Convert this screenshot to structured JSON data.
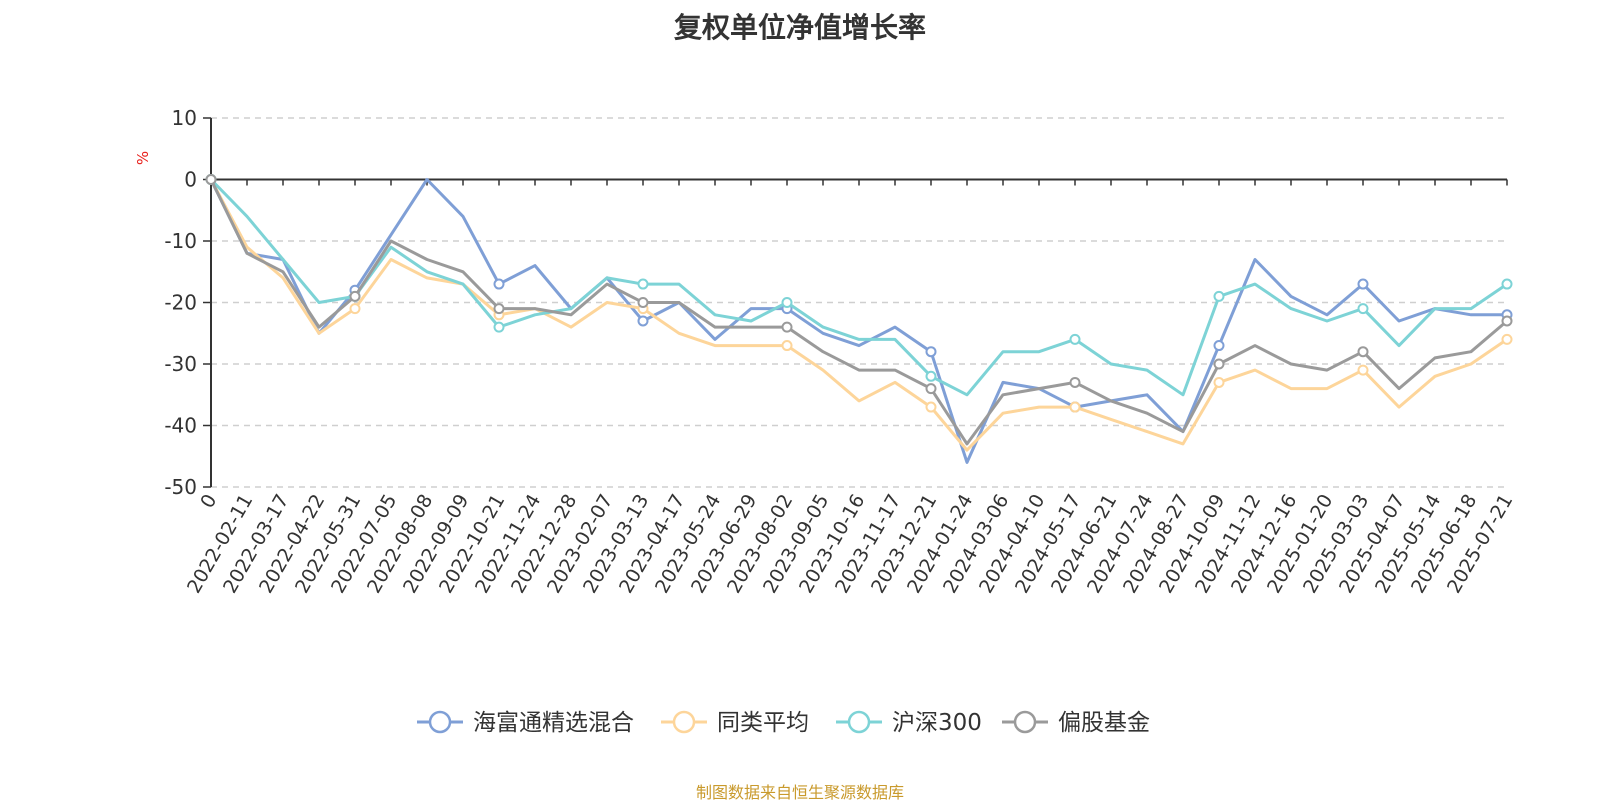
{
  "chart_data": {
    "type": "line",
    "title": "复权单位净值增长率",
    "ylabel": "%",
    "ylim": [
      -50,
      10
    ],
    "yticks": [
      10,
      0,
      -10,
      -20,
      -30,
      -40,
      -50
    ],
    "x_origin_label": "0",
    "x_tick_labels": [
      "2022-02-11",
      "2022-03-17",
      "2022-04-22",
      "2022-05-31",
      "2022-07-05",
      "2022-08-08",
      "2022-09-09",
      "2022-10-21",
      "2022-11-24",
      "2022-12-28",
      "2023-02-07",
      "2023-03-13",
      "2023-04-17",
      "2023-05-24",
      "2023-06-29",
      "2023-08-02",
      "2023-09-05",
      "2023-10-16",
      "2023-11-17",
      "2023-12-21",
      "2024-01-24",
      "2024-03-06",
      "2024-04-10",
      "2024-05-17",
      "2024-06-21",
      "2024-07-24",
      "2024-08-27",
      "2024-10-09",
      "2024-11-12",
      "2024-12-16",
      "2025-01-20",
      "2025-03-03",
      "2025-04-07",
      "2025-05-14",
      "2025-06-18",
      "2025-07-21"
    ],
    "grid": "horizontal dashed",
    "legend_position": "bottom",
    "x": [
      "2022-01-07",
      "2022-02-11",
      "2022-03-17",
      "2022-04-22",
      "2022-05-31",
      "2022-07-05",
      "2022-08-08",
      "2022-09-09",
      "2022-10-21",
      "2022-11-24",
      "2022-12-28",
      "2023-02-07",
      "2023-03-13",
      "2023-04-17",
      "2023-05-24",
      "2023-06-29",
      "2023-08-02",
      "2023-09-05",
      "2023-10-16",
      "2023-11-17",
      "2023-12-21",
      "2024-01-24",
      "2024-03-06",
      "2024-04-10",
      "2024-05-17",
      "2024-06-21",
      "2024-07-24",
      "2024-08-27",
      "2024-10-09",
      "2024-11-12",
      "2024-12-16",
      "2025-01-20",
      "2025-03-03",
      "2025-04-07",
      "2025-05-14",
      "2025-06-18",
      "2025-07-21"
    ],
    "series": [
      {
        "name": "海富通精选混合",
        "color": "#7f9fd6",
        "values": [
          0,
          -12,
          -13,
          -25,
          -18,
          -9,
          0,
          -6,
          -17,
          -14,
          -21,
          -16,
          -23,
          -20,
          -26,
          -21,
          -21,
          -25,
          -27,
          -24,
          -28,
          -46,
          -33,
          -34,
          -37,
          -36,
          -35,
          -41,
          -27,
          -13,
          -19,
          -22,
          -17,
          -23,
          -21,
          -22,
          -22
        ]
      },
      {
        "name": "同类平均",
        "color": "#fdd59a",
        "values": [
          0,
          -11,
          -16,
          -25,
          -21,
          -13,
          -16,
          -17,
          -22,
          -21,
          -24,
          -20,
          -21,
          -25,
          -27,
          -27,
          -27,
          -31,
          -36,
          -33,
          -37,
          -44,
          -38,
          -37,
          -37,
          -39,
          -41,
          -43,
          -33,
          -31,
          -34,
          -34,
          -31,
          -37,
          -32,
          -30,
          -26
        ]
      },
      {
        "name": "沪深300",
        "color": "#7dd3d6",
        "values": [
          0,
          -6,
          -13,
          -20,
          -19,
          -11,
          -15,
          -17,
          -24,
          -22,
          -21,
          -16,
          -17,
          -17,
          -22,
          -23,
          -20,
          -24,
          -26,
          -26,
          -32,
          -35,
          -28,
          -28,
          -26,
          -30,
          -31,
          -35,
          -19,
          -17,
          -21,
          -23,
          -21,
          -27,
          -21,
          -21,
          -17
        ]
      },
      {
        "name": "偏股基金",
        "color": "#9a9a9a",
        "values": [
          0,
          -12,
          -15,
          -24,
          -19,
          -10,
          -13,
          -15,
          -21,
          -21,
          -22,
          -17,
          -20,
          -20,
          -24,
          -24,
          -24,
          -28,
          -31,
          -31,
          -34,
          -43,
          -35,
          -34,
          -33,
          -36,
          -38,
          -41,
          -30,
          -27,
          -30,
          -31,
          -28,
          -34,
          -29,
          -28,
          -23
        ]
      }
    ],
    "source_note": "制图数据来自恒生聚源数据库",
    "source_note_color": "#c99a2c",
    "axis_color": "#333333",
    "grid_color": "#cfcfcf"
  }
}
